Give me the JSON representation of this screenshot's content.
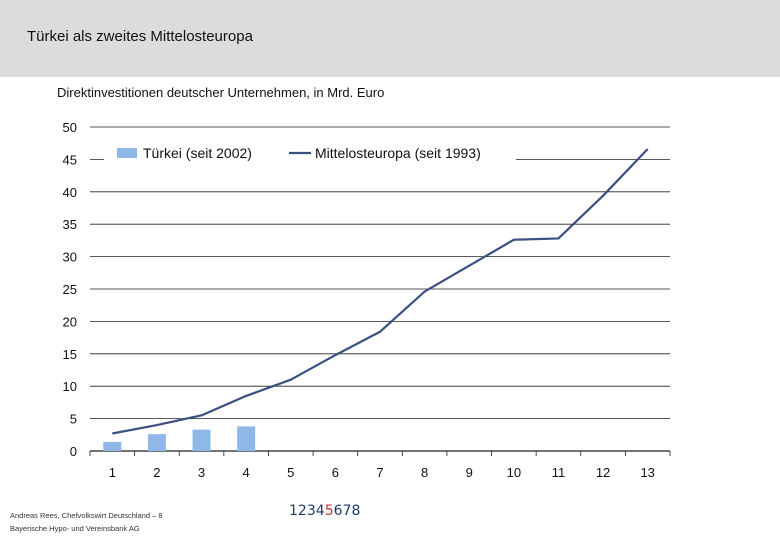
{
  "slide": {
    "title": "Türkei als zweites Mittelosteuropa"
  },
  "footer": {
    "line1": "Andreas Rees, Chefvolkswirt Deutschland – 8",
    "line2": "Bayerische Hypo- und Vereinsbank AG"
  },
  "page_nav": {
    "pages": [
      "1",
      "2",
      "3",
      "4",
      "5",
      "6",
      "7",
      "8"
    ],
    "current": "5"
  },
  "colors": {
    "bar": "#8fb8e8",
    "line": "#3b4f82",
    "grid": "#222222",
    "header_band": "#dcdcdc"
  },
  "chart_data": {
    "type": "bar+line",
    "title": "Direktinvestitionen deutscher Unternehmen, in Mrd. Euro",
    "categories": [
      "1",
      "2",
      "3",
      "4",
      "5",
      "6",
      "7",
      "8",
      "9",
      "10",
      "11",
      "12",
      "13"
    ],
    "ylim": [
      0,
      50
    ],
    "yticks": [
      0,
      5,
      10,
      15,
      20,
      25,
      30,
      35,
      40,
      45,
      50
    ],
    "grid": true,
    "legend_position": "top",
    "series": [
      {
        "name": "Türkei (seit 2002)",
        "kind": "bar",
        "values": [
          1.4,
          2.6,
          3.3,
          3.8,
          null,
          null,
          null,
          null,
          null,
          null,
          null,
          null,
          null
        ]
      },
      {
        "name": "Mittelosteuropa (seit 1993)",
        "kind": "line",
        "values": [
          2.7,
          4.0,
          5.5,
          8.5,
          11.0,
          14.8,
          18.4,
          24.6,
          28.6,
          32.6,
          32.8,
          39.4,
          46.6
        ]
      }
    ]
  }
}
